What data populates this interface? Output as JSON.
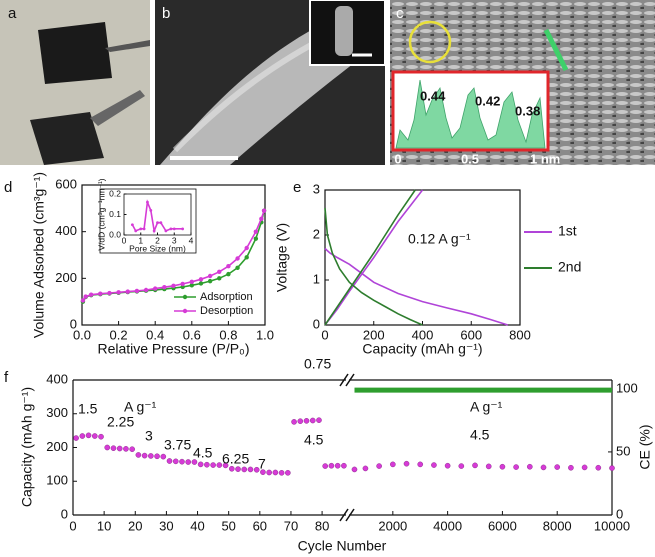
{
  "panel_labels": [
    "a",
    "b",
    "c",
    "d",
    "e",
    "f"
  ],
  "panel_c_inset": {
    "peak_labels": [
      "0.44",
      "0.42",
      "0.38"
    ],
    "x_labels": [
      "0",
      "0.5",
      "1 nm"
    ]
  },
  "chart_data": [
    {
      "type": "line",
      "xlabel": "Relative Pressure (P/P₀)",
      "ylabel": "Volume Adsorbed (cm³g⁻¹)",
      "xlim": [
        0,
        1
      ],
      "xticks": [
        {
          "value": 0,
          "label": "0.0"
        },
        0.2,
        0.4,
        0.6,
        0.8,
        {
          "value": 1,
          "label": "1.0"
        }
      ],
      "ylim": [
        0,
        600
      ],
      "yticks": [
        0,
        200,
        400,
        600
      ],
      "legend": "lower right",
      "markers": true,
      "series": [
        {
          "name": "Adsorption",
          "color": "#2e9e2e",
          "x": [
            0.005,
            0.02,
            0.05,
            0.1,
            0.15,
            0.2,
            0.25,
            0.3,
            0.35,
            0.4,
            0.45,
            0.5,
            0.55,
            0.6,
            0.65,
            0.7,
            0.75,
            0.8,
            0.85,
            0.9,
            0.95,
            0.98,
            0.995
          ],
          "values": [
            100,
            120,
            128,
            132,
            135,
            138,
            141,
            144,
            147,
            150,
            154,
            158,
            163,
            170,
            178,
            188,
            200,
            218,
            245,
            290,
            370,
            440,
            490
          ]
        },
        {
          "name": "Desorption",
          "color": "#d63bd6",
          "x": [
            0.005,
            0.02,
            0.05,
            0.1,
            0.15,
            0.2,
            0.25,
            0.3,
            0.35,
            0.4,
            0.45,
            0.5,
            0.55,
            0.6,
            0.65,
            0.7,
            0.75,
            0.8,
            0.85,
            0.9,
            0.95,
            0.98,
            0.995
          ],
          "values": [
            105,
            122,
            130,
            134,
            137,
            140,
            143,
            146,
            150,
            156,
            162,
            168,
            176,
            185,
            196,
            210,
            228,
            252,
            285,
            330,
            400,
            455,
            490
          ]
        }
      ],
      "inset": {
        "type": "line",
        "xlabel": "Pore Size (nm)",
        "ylabel": "V/dD (cm³g⁻¹nm⁻¹)",
        "xlim": [
          0,
          4
        ],
        "xticks": [
          0,
          1,
          2,
          3,
          4
        ],
        "ylim": [
          0,
          0.2
        ],
        "yticks": [
          {
            "value": 0,
            "label": "0.0"
          },
          0.1,
          0.2
        ],
        "markers": true,
        "series": [
          {
            "color": "#d63bd6",
            "x": [
              0.5,
              0.7,
              1.0,
              1.2,
              1.4,
              1.6,
              1.8,
              2.0,
              2.2,
              2.5,
              2.8,
              3.0,
              3.5
            ],
            "values": [
              0.05,
              0.02,
              0.03,
              0.03,
              0.16,
              0.12,
              0.02,
              0.06,
              0.06,
              0.02,
              0.03,
              0.03,
              0.03
            ]
          }
        ]
      }
    },
    {
      "type": "line",
      "xlabel": "Capacity (mAh g⁻¹)",
      "ylabel": "Voltage (V)",
      "annotation": "0.12 A g⁻¹",
      "xlim": [
        0,
        800
      ],
      "xticks": [
        0,
        200,
        400,
        600,
        800
      ],
      "ylim": [
        0,
        3
      ],
      "yticks": [
        0,
        1,
        2,
        3
      ],
      "legend": "right",
      "series": [
        {
          "name": "1st",
          "color": "#b044d8",
          "x": [
            0,
            20,
            50,
            100,
            150,
            200,
            300,
            400,
            500,
            600,
            680,
            750,
            null,
            0,
            50,
            100,
            200,
            300,
            400
          ],
          "values": [
            1.7,
            1.6,
            1.5,
            1.35,
            1.15,
            0.95,
            0.7,
            0.52,
            0.38,
            0.25,
            0.12,
            0,
            null,
            0,
            0.35,
            0.75,
            1.5,
            2.3,
            3
          ]
        },
        {
          "name": "2nd",
          "color": "#2e7d2e",
          "x": [
            0,
            10,
            30,
            60,
            100,
            150,
            200,
            250,
            300,
            350,
            400,
            null,
            0,
            50,
            100,
            200,
            300,
            370
          ],
          "values": [
            2.6,
            2.0,
            1.6,
            1.25,
            0.95,
            0.72,
            0.55,
            0.4,
            0.25,
            0.12,
            0,
            null,
            0,
            0.4,
            0.8,
            1.6,
            2.45,
            3
          ]
        }
      ]
    },
    {
      "type": "scatter",
      "xlabel": "Cycle Number",
      "ylabel": "Capacity (mAh g⁻¹)",
      "y2label": "CE (%)",
      "annotations": [
        "1.5",
        "2.25",
        "3",
        "3.75",
        "4.5",
        "6.25",
        "7",
        "0.75",
        "4.5",
        "A g⁻¹",
        "A g⁻¹",
        "4.5"
      ],
      "xlim": [
        0,
        88
      ],
      "xticks": [
        0,
        10,
        20,
        30,
        40,
        50,
        60,
        70,
        80
      ],
      "x2lim": [
        400,
        10000
      ],
      "x2ticks": [
        2000,
        4000,
        6000,
        8000,
        10000
      ],
      "ylim": [
        0,
        400
      ],
      "yticks": [
        0,
        100,
        200,
        300,
        400
      ],
      "y2lim": [
        0,
        107
      ],
      "y2ticks": [
        0,
        50,
        100
      ],
      "series": [
        {
          "color": "#d63bd6",
          "x": [
            1,
            3,
            5,
            7,
            9,
            11,
            13,
            15,
            17,
            19,
            21,
            23,
            25,
            27,
            29,
            31,
            33,
            35,
            37,
            39,
            41,
            43,
            45,
            47,
            49,
            51,
            53,
            55,
            57,
            59,
            61,
            63,
            65,
            67,
            69,
            71,
            73,
            75,
            77,
            79,
            81,
            83,
            85,
            87
          ],
          "values": [
            228,
            234,
            236,
            234,
            232,
            200,
            198,
            197,
            196,
            195,
            178,
            176,
            175,
            174,
            173,
            160,
            159,
            158,
            157,
            157,
            150,
            149,
            148,
            148,
            147,
            137,
            136,
            135,
            135,
            134,
            127,
            126,
            126,
            125,
            125,
            276,
            278,
            279,
            280,
            281,
            145,
            146,
            146,
            146
          ]
        },
        {
          "color": "#d63bd6",
          "xaxis": "x2",
          "x": [
            600,
            1000,
            1500,
            2000,
            2500,
            3000,
            3500,
            4000,
            4500,
            5000,
            5500,
            6000,
            6500,
            7000,
            7500,
            8000,
            8500,
            9000,
            9500,
            10000
          ],
          "values": [
            135,
            138,
            145,
            150,
            152,
            150,
            148,
            146,
            145,
            147,
            144,
            143,
            142,
            143,
            141,
            142,
            140,
            141,
            140,
            139
          ]
        },
        {
          "color": "#2e9e2e",
          "xaxis": "x2",
          "axis": "y2",
          "x": [
            600,
            2000,
            4000,
            6000,
            8000,
            10000
          ],
          "values": [
            99,
            99,
            99,
            99,
            99,
            99
          ]
        }
      ]
    }
  ]
}
